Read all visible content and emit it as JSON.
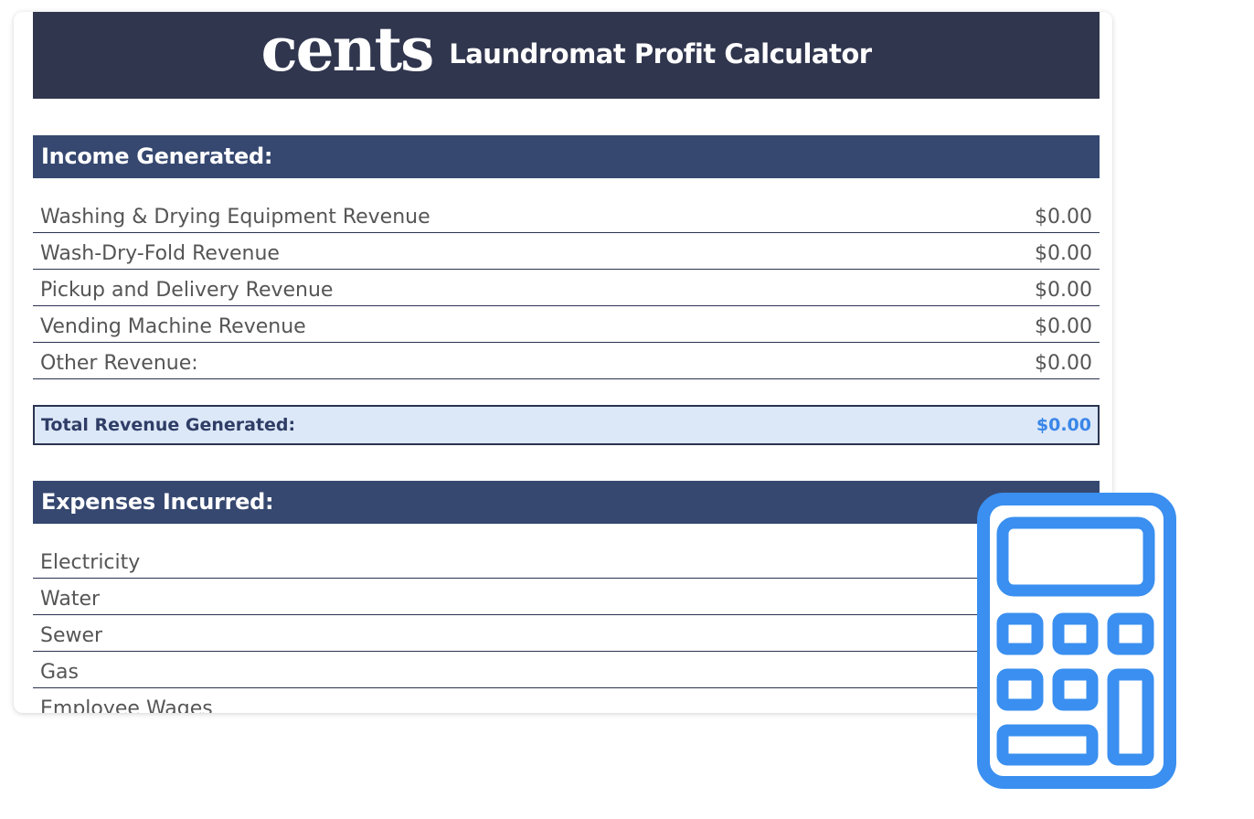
{
  "header": {
    "logo": "cents",
    "title": "Laundromat Profit Calculator"
  },
  "income": {
    "heading": "Income Generated:",
    "rows": [
      {
        "label": "Washing & Drying Equipment Revenue",
        "value": "$0.00"
      },
      {
        "label": "Wash-Dry-Fold Revenue",
        "value": "$0.00"
      },
      {
        "label": "Pickup and Delivery Revenue",
        "value": "$0.00"
      },
      {
        "label": "Vending Machine Revenue",
        "value": "$0.00"
      },
      {
        "label": "Other Revenue:",
        "value": "$0.00"
      }
    ],
    "total_label": "Total Revenue Generated:",
    "total_value": "$0.00"
  },
  "expenses": {
    "heading": "Expenses Incurred:",
    "rows": [
      {
        "label": "Electricity"
      },
      {
        "label": "Water"
      },
      {
        "label": "Sewer"
      },
      {
        "label": "Gas"
      },
      {
        "label": "Employee Wages"
      }
    ]
  },
  "colors": {
    "banner": "#30364e",
    "section": "#364870",
    "accent": "#3a8ff0",
    "total_bg": "#dce8f8"
  },
  "icons": {
    "calculator": "calculator-icon"
  }
}
